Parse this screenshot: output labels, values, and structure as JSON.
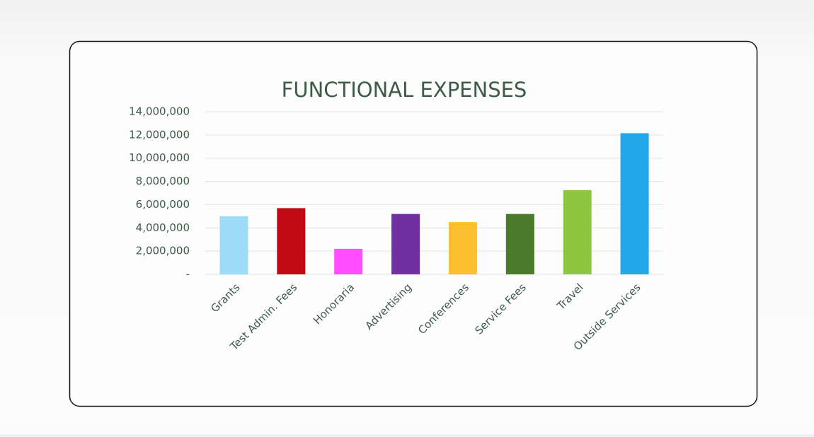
{
  "chart_data": {
    "type": "bar",
    "title": "FUNCTIONAL EXPENSES",
    "categories": [
      "Grants",
      "Test Admin. Fees",
      "Honoraria",
      "Advertising",
      "Conferences",
      "Service Fees",
      "Travel",
      "Outside Services"
    ],
    "values": [
      5000000,
      5700000,
      2200000,
      5200000,
      4500000,
      5200000,
      7250000,
      12150000
    ],
    "colors": [
      "#9ddcf9",
      "#c00a14",
      "#ff4dff",
      "#7030a0",
      "#fcbf2e",
      "#4a7b2c",
      "#8dc63f",
      "#22a7eb"
    ],
    "ylim": [
      0,
      14000000
    ],
    "yticks": [
      {
        "value": 0,
        "label": "-"
      },
      {
        "value": 2000000,
        "label": "2,000,000"
      },
      {
        "value": 4000000,
        "label": "4,000,000"
      },
      {
        "value": 6000000,
        "label": "6,000,000"
      },
      {
        "value": 8000000,
        "label": "8,000,000"
      },
      {
        "value": 10000000,
        "label": "10,000,000"
      },
      {
        "value": 12000000,
        "label": "12,000,000"
      },
      {
        "value": 14000000,
        "label": "14,000,000"
      }
    ],
    "grid": true
  }
}
